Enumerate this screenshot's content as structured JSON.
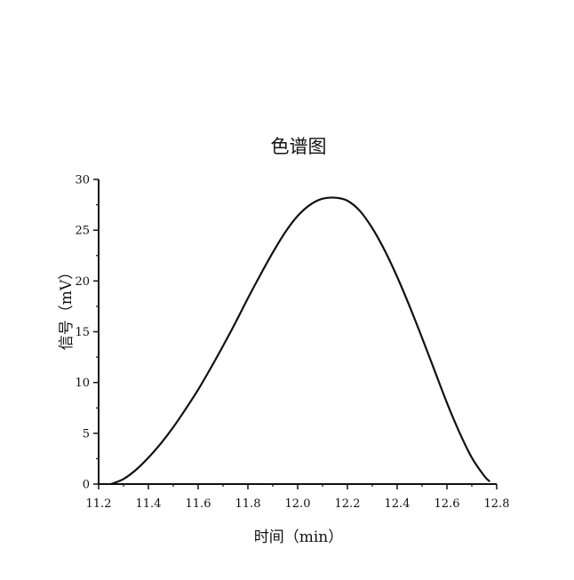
{
  "chart_data": {
    "type": "line",
    "title": "色谱图",
    "xlabel": "时间（min）",
    "ylabel": "信号（mV）",
    "xlim": [
      11.2,
      12.8
    ],
    "ylim": [
      0,
      30
    ],
    "xticks": [
      11.2,
      11.4,
      11.6,
      11.8,
      12.0,
      12.2,
      12.4,
      12.6,
      12.8
    ],
    "xtick_labels": [
      "11.2",
      "11.4",
      "11.6",
      "11.8",
      "12.0",
      "12.2",
      "12.4",
      "12.6",
      "12.8"
    ],
    "yticks": [
      0,
      5,
      10,
      15,
      20,
      25,
      30
    ],
    "ytick_labels": [
      "0",
      "5",
      "10",
      "15",
      "20",
      "25",
      "30"
    ],
    "grid": false,
    "series": [
      {
        "color": "#111111",
        "x": [
          11.25,
          11.3,
          11.35,
          11.4,
          11.45,
          11.5,
          11.55,
          11.6,
          11.65,
          11.7,
          11.75,
          11.8,
          11.85,
          11.9,
          11.95,
          12.0,
          12.05,
          12.1,
          12.15,
          12.2,
          12.25,
          12.3,
          12.35,
          12.4,
          12.45,
          12.5,
          12.55,
          12.6,
          12.65,
          12.7,
          12.75,
          12.77
        ],
        "y": [
          0.0,
          0.5,
          1.4,
          2.6,
          4.0,
          5.6,
          7.4,
          9.3,
          11.4,
          13.6,
          15.9,
          18.3,
          20.6,
          22.8,
          24.8,
          26.4,
          27.5,
          28.1,
          28.2,
          27.9,
          26.9,
          25.2,
          23.0,
          20.4,
          17.5,
          14.4,
          11.2,
          8.0,
          5.1,
          2.6,
          0.8,
          0.3
        ]
      }
    ]
  }
}
